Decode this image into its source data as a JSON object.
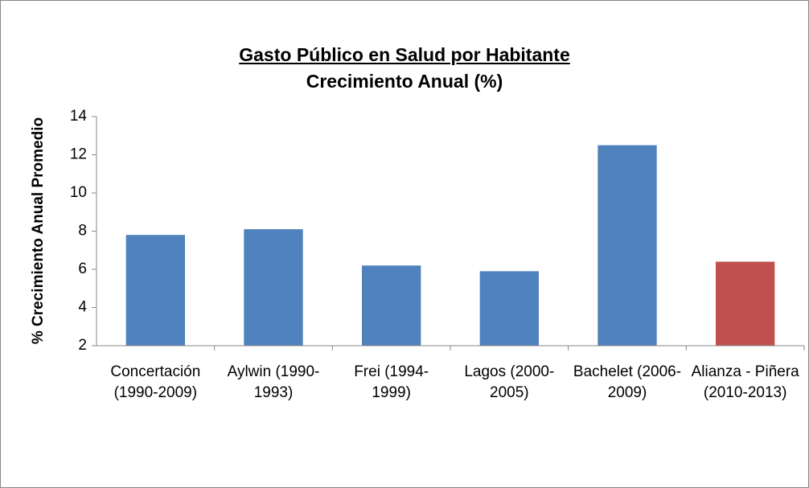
{
  "chart_data": {
    "type": "bar",
    "title": "Gasto Público en Salud por Habitante",
    "subtitle": "Crecimiento Anual (%)",
    "y_label": "% Crecimiento Anual Promedio",
    "categories": [
      "Concertación (1990-2009)",
      "Aylwin (1990-1993)",
      "Frei  (1994-1999)",
      "Lagos (2000-2005)",
      "Bachelet (2006-2009)",
      "Alianza - Piñera (2010-2013)"
    ],
    "values": [
      7.8,
      8.1,
      6.2,
      5.9,
      12.5,
      6.4
    ],
    "colors": [
      "#4f81bd",
      "#4f81bd",
      "#4f81bd",
      "#4f81bd",
      "#4f81bd",
      "#c0504d"
    ],
    "ylim": [
      2,
      14
    ],
    "yticks": [
      2,
      4,
      6,
      8,
      10,
      12,
      14
    ],
    "grid": false
  }
}
